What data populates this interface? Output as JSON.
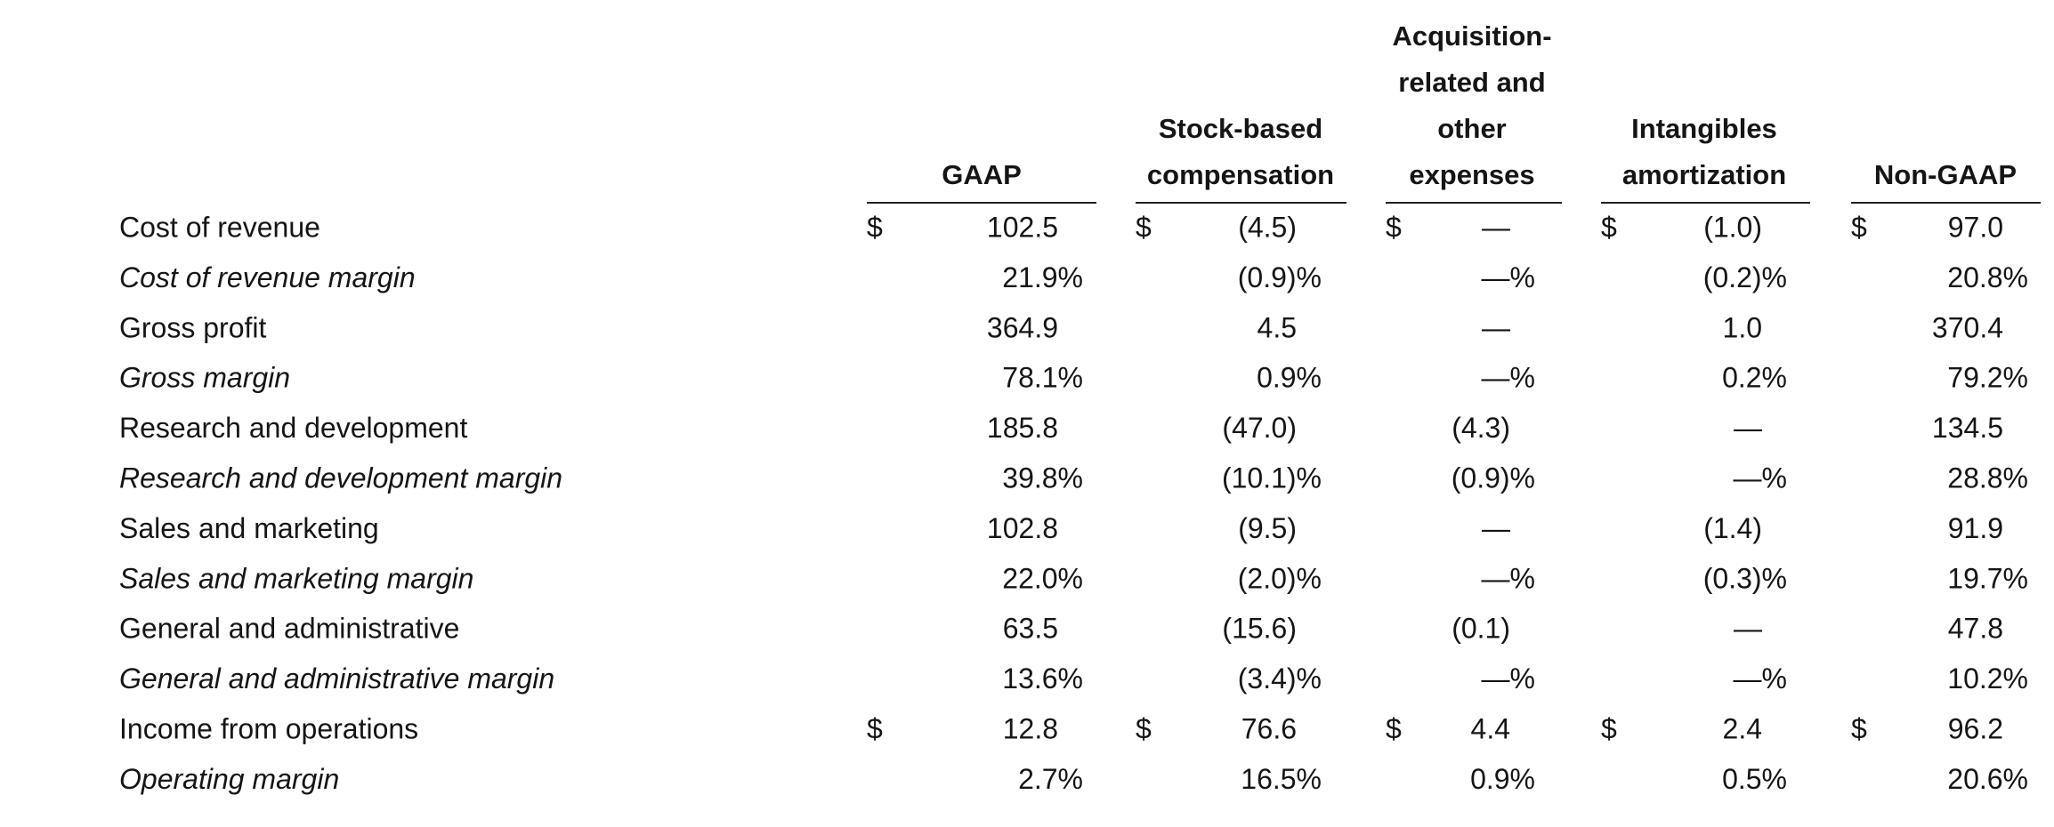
{
  "table": {
    "columns": [
      {
        "lines": [
          "GAAP"
        ]
      },
      {
        "lines": [
          "Stock-based",
          "compensation"
        ]
      },
      {
        "lines": [
          "Acquisition-",
          "related and",
          "other",
          "expenses"
        ]
      },
      {
        "lines": [
          "Intangibles",
          "amortization"
        ]
      },
      {
        "lines": [
          "Non-GAAP"
        ]
      }
    ],
    "rows": [
      {
        "label": "Cost of revenue",
        "cells": [
          {
            "currency": "$",
            "value": "102.5"
          },
          {
            "currency": "$",
            "value": "(4.5)"
          },
          {
            "currency": "$",
            "value": "—"
          },
          {
            "currency": "$",
            "value": "(1.0)"
          },
          {
            "currency": "$",
            "value": "97.0"
          }
        ]
      },
      {
        "label": "Cost of revenue margin",
        "cells": [
          {
            "value": "21.9%"
          },
          {
            "value": "(0.9)%"
          },
          {
            "value": "—%"
          },
          {
            "value": "(0.2)%"
          },
          {
            "value": "20.8%"
          }
        ]
      },
      {
        "label": "Gross profit",
        "cells": [
          {
            "value": "364.9"
          },
          {
            "value": "4.5"
          },
          {
            "value": "—"
          },
          {
            "value": "1.0"
          },
          {
            "value": "370.4"
          }
        ]
      },
      {
        "label": "Gross margin",
        "cells": [
          {
            "value": "78.1%"
          },
          {
            "value": "0.9%"
          },
          {
            "value": "—%"
          },
          {
            "value": "0.2%"
          },
          {
            "value": "79.2%"
          }
        ]
      },
      {
        "label": "Research and development",
        "cells": [
          {
            "value": "185.8"
          },
          {
            "value": "(47.0)"
          },
          {
            "value": "(4.3)"
          },
          {
            "value": "—"
          },
          {
            "value": "134.5"
          }
        ]
      },
      {
        "label": "Research and development margin",
        "cells": [
          {
            "value": "39.8%"
          },
          {
            "value": "(10.1)%"
          },
          {
            "value": "(0.9)%"
          },
          {
            "value": "—%"
          },
          {
            "value": "28.8%"
          }
        ]
      },
      {
        "label": "Sales and marketing",
        "cells": [
          {
            "value": "102.8"
          },
          {
            "value": "(9.5)"
          },
          {
            "value": "—"
          },
          {
            "value": "(1.4)"
          },
          {
            "value": "91.9"
          }
        ]
      },
      {
        "label": "Sales and marketing margin",
        "cells": [
          {
            "value": "22.0%"
          },
          {
            "value": "(2.0)%"
          },
          {
            "value": "—%"
          },
          {
            "value": "(0.3)%"
          },
          {
            "value": "19.7%"
          }
        ]
      },
      {
        "label": "General and administrative",
        "cells": [
          {
            "value": "63.5"
          },
          {
            "value": "(15.6)"
          },
          {
            "value": "(0.1)"
          },
          {
            "value": "—"
          },
          {
            "value": "47.8"
          }
        ]
      },
      {
        "label": "General and administrative margin",
        "cells": [
          {
            "value": "13.6%"
          },
          {
            "value": "(3.4)%"
          },
          {
            "value": "—%"
          },
          {
            "value": "—%"
          },
          {
            "value": "10.2%"
          }
        ]
      },
      {
        "label": "Income from operations",
        "cells": [
          {
            "currency": "$",
            "value": "12.8"
          },
          {
            "currency": "$",
            "value": "76.6"
          },
          {
            "currency": "$",
            "value": "4.4"
          },
          {
            "currency": "$",
            "value": "2.4"
          },
          {
            "currency": "$",
            "value": "96.2"
          }
        ]
      },
      {
        "label": "Operating margin",
        "cells": [
          {
            "value": "2.7%"
          },
          {
            "value": "16.5%"
          },
          {
            "value": "0.9%"
          },
          {
            "value": "0.5%"
          },
          {
            "value": "20.6%"
          }
        ]
      }
    ]
  }
}
